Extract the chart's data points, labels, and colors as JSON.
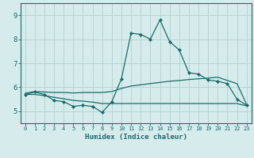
{
  "title": "",
  "xlabel": "Humidex (Indice chaleur)",
  "ylabel": "",
  "background_color": "#d6ecec",
  "grid_color": "#b8d4d4",
  "line_color": "#1a6b6b",
  "x_ticks": [
    0,
    1,
    2,
    3,
    4,
    5,
    6,
    7,
    8,
    9,
    10,
    11,
    12,
    13,
    14,
    15,
    16,
    17,
    18,
    19,
    20,
    21,
    22,
    23
  ],
  "y_ticks": [
    5,
    6,
    7,
    8,
    9
  ],
  "ylim": [
    4.5,
    9.5
  ],
  "xlim": [
    -0.5,
    23.5
  ],
  "series": {
    "main": [
      5.7,
      5.8,
      5.7,
      5.45,
      5.4,
      5.2,
      5.25,
      5.2,
      4.95,
      5.4,
      6.35,
      8.25,
      8.2,
      8.0,
      8.8,
      7.9,
      7.55,
      6.6,
      6.55,
      6.3,
      6.25,
      6.15,
      5.5,
      5.25
    ],
    "upper": [
      5.75,
      5.82,
      5.8,
      5.78,
      5.78,
      5.76,
      5.78,
      5.78,
      5.78,
      5.82,
      5.95,
      6.05,
      6.1,
      6.15,
      6.2,
      6.25,
      6.28,
      6.32,
      6.35,
      6.38,
      6.42,
      6.28,
      6.15,
      5.28
    ],
    "lower": [
      5.7,
      5.7,
      5.65,
      5.58,
      5.52,
      5.45,
      5.42,
      5.38,
      5.32,
      5.32,
      5.32,
      5.32,
      5.32,
      5.32,
      5.32,
      5.32,
      5.32,
      5.32,
      5.32,
      5.32,
      5.32,
      5.32,
      5.32,
      5.22
    ]
  }
}
